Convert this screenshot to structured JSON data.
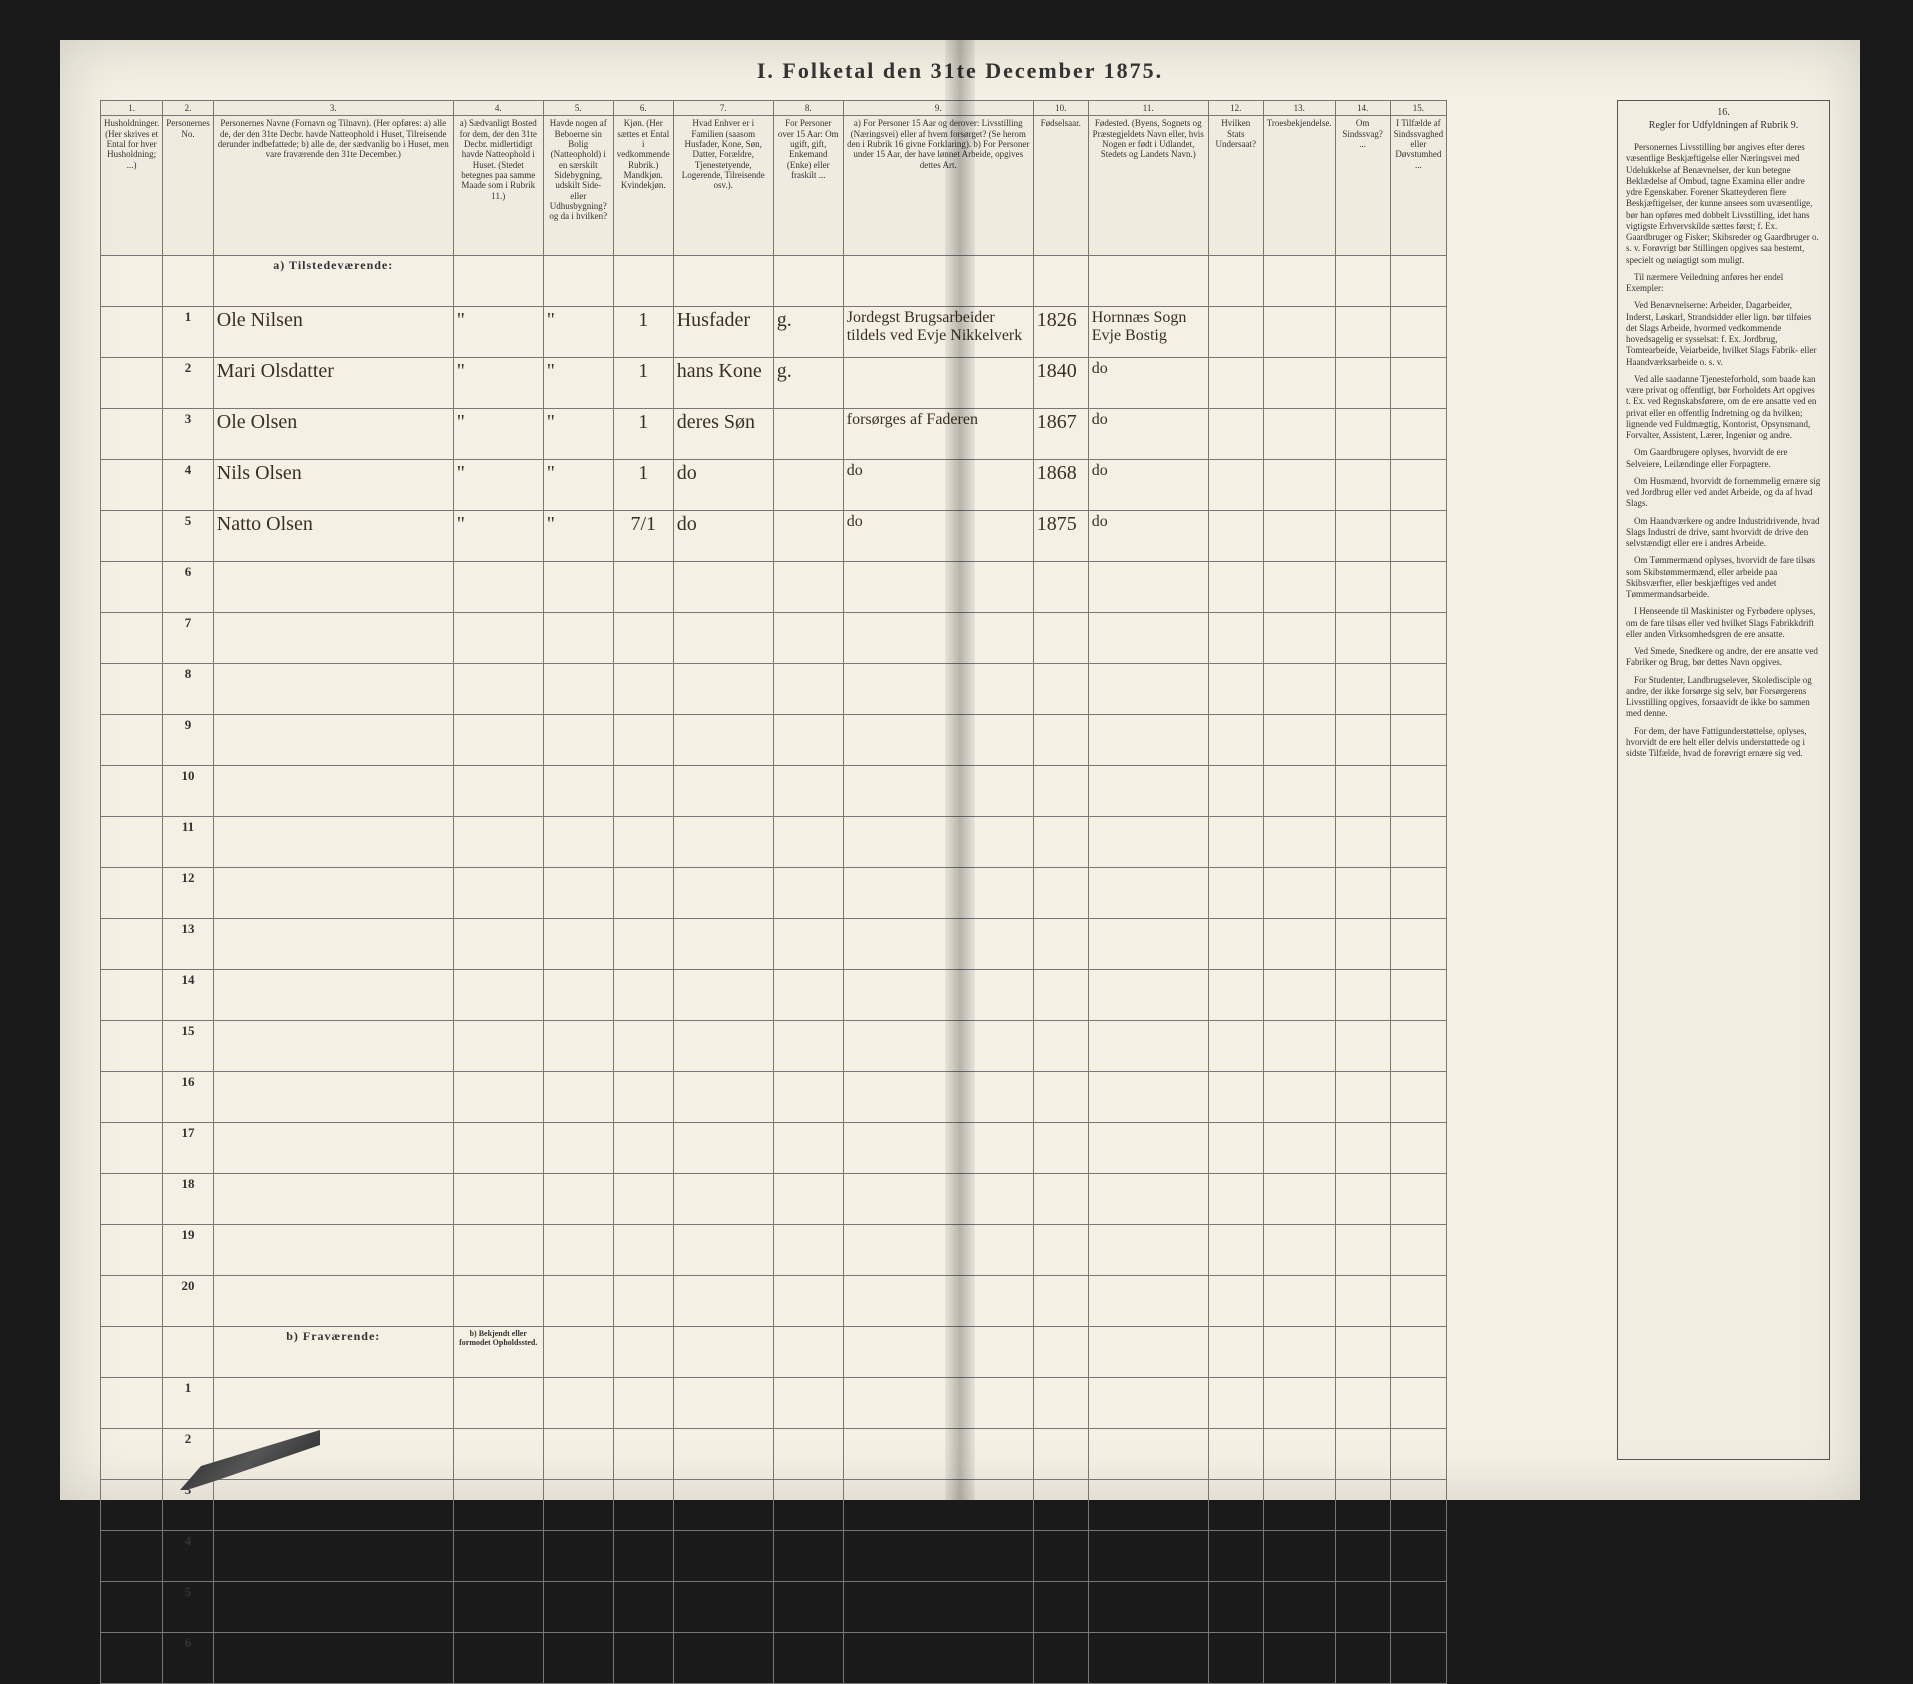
{
  "title": "I.  Folketal den 31te December 1875.",
  "columns": {
    "c1": {
      "num": "1.",
      "head": "Husholdninger. (Her skrives et Ental for hver Husholdning; ...)"
    },
    "c2": {
      "num": "2.",
      "head": "Personernes No."
    },
    "c3": {
      "num": "3.",
      "head": "Personernes Navne (Fornavn og Tilnavn). (Her opføres: a) alle de, der den 31te Decbr. havde Natteophold i Huset, Tilreisende derunder indbefattede; b) alle de, der sædvanlig bo i Huset, men vare fraværende den 31te December.)"
    },
    "c4": {
      "num": "4.",
      "head": "a) Sædvanligt Bosted for dem, der den 31te Decbr. midlertidigt havde Natteophold i Huset. (Stedet betegnes paa samme Maade som i Rubrik 11.)"
    },
    "c5": {
      "num": "5.",
      "head": "Havde nogen af Beboerne sin Bolig (Natteophold) i en særskilt Sidebygning, udskilt Side- eller Udhusbygning? og da i hvilken?"
    },
    "c6": {
      "num": "6.",
      "head": "Kjøn. (Her sættes et Ental i vedkommende Rubrik.) Mandkjøn. Kvindekjøn."
    },
    "c7": {
      "num": "7.",
      "head": "Hvad Enhver er i Familien (saasom Husfader, Kone, Søn, Datter, Forældre, Tjenestetyende, Logerende, Tilreisende osv.)."
    },
    "c8": {
      "num": "8.",
      "head": "For Personer over 15 Aar: Om ugift, gift, Enkemand (Enke) eller fraskilt ..."
    },
    "c9": {
      "num": "9.",
      "head": "a) For Personer 15 Aar og derover: Livsstilling (Næringsvei) eller af hvem forsørget? (Se herom den i Rubrik 16 givne Forklaring). b) For Personer under 15 Aar, der have lønnet Arbeide, opgives dettes Art."
    },
    "c10": {
      "num": "10.",
      "head": "Fødselsaar."
    },
    "c11": {
      "num": "11.",
      "head": "Fødested. (Byens, Sognets og Præstegjeldets Navn eller, hvis Nogen er født i Udlandet, Stedets og Landets Navn.)"
    },
    "c12": {
      "num": "12.",
      "head": "Hvilken Stats Undersaat?"
    },
    "c13": {
      "num": "13.",
      "head": "Troesbekjendelse."
    },
    "c14": {
      "num": "14.",
      "head": "Om Sindssvag? ..."
    },
    "c15": {
      "num": "15.",
      "head": "I Tilfælde af Sindssvaghed eller Døvstumhed ..."
    },
    "c16": {
      "num": "16.",
      "head": "Regler for Udfyldningen af Rubrik 9."
    }
  },
  "section_present": "a) Tilstedeværende:",
  "section_absent": "b) Fraværende:",
  "absent_col4_note": "b) Bekjendt eller formodet Opholdssted.",
  "rows_present": [
    {
      "n": "1",
      "name": "Ole Nilsen",
      "c4": "\"",
      "c5": "\"",
      "c6": "1",
      "c7": "Husfader",
      "c8": "g.",
      "c9": "Jordegst Brugsarbeider tildels ved Evje Nikkelverk",
      "c10": "1826",
      "c11": "Hornnæs Sogn Evje Bostig"
    },
    {
      "n": "2",
      "name": "Mari Olsdatter",
      "c4": "\"",
      "c5": "\"",
      "c6": "1",
      "c7": "hans Kone",
      "c8": "g.",
      "c9": "",
      "c10": "1840",
      "c11": "do"
    },
    {
      "n": "3",
      "name": "Ole Olsen",
      "c4": "\"",
      "c5": "\"",
      "c6": "1",
      "c7": "deres Søn",
      "c8": "",
      "c9": "forsørges af Faderen",
      "c10": "1867",
      "c11": "do"
    },
    {
      "n": "4",
      "name": "Nils Olsen",
      "c4": "\"",
      "c5": "\"",
      "c6": "1",
      "c7": "do",
      "c8": "",
      "c9": "do",
      "c10": "1868",
      "c11": "do"
    },
    {
      "n": "5",
      "name": "Natto Olsen",
      "c4": "\"",
      "c5": "\"",
      "c6": "7/1",
      "c7": "do",
      "c8": "",
      "c9": "do",
      "c10": "1875",
      "c11": "do"
    }
  ],
  "present_empty": [
    "6",
    "7",
    "8",
    "9",
    "10",
    "11",
    "12",
    "13",
    "14",
    "15",
    "16",
    "17",
    "18",
    "19",
    "20"
  ],
  "absent_empty": [
    "1",
    "2",
    "3",
    "4",
    "5",
    "6"
  ],
  "rules_text_head": "Regler for Udfyldningen af Rubrik 9.",
  "rules_paragraphs": [
    "Personernes Livsstilling bør angives efter deres væsentlige Beskjæftigelse eller Næringsvei med Udelukkelse af Benævnelser, der kun betegne Beklædelse af Ombud, tagne Examina eller andre ydre Egenskaber. Forener Skatteyderen flere Beskjæftigelser, der kunne ansees som uvæsentlige, bør han opføres med dobbelt Livsstilling, idet hans vigtigste Erhvervskilde sættes først; f. Ex. Gaardbruger og Fisker; Skibsreder og Gaardbruger o. s. v. Forøvrigt bør Stillingen opgives saa bestemt, specielt og nøiagtigt som muligt.",
    "Til nærmere Veiledning anføres her endel Exempler:",
    "Ved Benævnelserne: Arbeider, Dagarbeider, Inderst, Løskarl, Strandsidder eller lign. bør tilføies det Slags Arbeide, hvormed vedkommende hovedsagelig er sysselsat: f. Ex. Jordbrug, Tomtearbeide, Veiarbeide, hvilket Slags Fabrik- eller Haandværksarbeide o. s. v.",
    "Ved alle saadanne Tjenesteforhold, som baade kan være privat og offentligt, bør Forholdets Art opgives t. Ex. ved Regnskabsførere, om de ere ansatte ved en privat eller en offentlig Indretning og da hvilken; lignende ved Fuldmægtig, Kontorist, Opsynsmand, Forvalter, Assistent, Lærer, Ingeniør og andre.",
    "Om Gaardbrugere oplyses, hvorvidt de ere Selveiere, Leilændinge eller Forpagtere.",
    "Om Husmænd, hvorvidt de fornemmelig ernære sig ved Jordbrug eller ved andet Arbeide, og da af hvad Slags.",
    "Om Haandværkere og andre Industridrivende, hvad Slags Industri de drive, samt hvorvidt de drive den selvstændigt eller ere i andres Arbeide.",
    "Om Tømmermænd oplyses, hvorvidt de fare tilsøs som Skibstømmermænd, eller arbeide paa Skibsværfter, eller beskjæftiges ved andet Tømmermandsarbeide.",
    "I Henseende til Maskinister og Fyrbødere oplyses, om de fare tilsøs eller ved hvilket Slags Fabrikkdrift eller anden Virksomhedsgren de ere ansatte.",
    "Ved Smede, Snedkere og andre, der ere ansatte ved Fabriker og Brug, bør dettes Navn opgives.",
    "For Studenter, Landbrugselever, Skoledisciple og andre, der ikke forsørge sig selv, bør Forsørgerens Livsstilling opgives, forsaavidt de ikke bo sammen med denne.",
    "For dem, der have Fattigunderstøttelse, oplyses, hvorvidt de ere helt eller delvis understøttede og i sidste Tilfælde, hvad de forøvrigt ernære sig ved."
  ],
  "styling": {
    "page_bg": "#f4f0e4",
    "ink": "#3a3020",
    "rule_color": "#777",
    "title_fontsize": 22,
    "header_fontsize": 9,
    "script_fontsize": 20
  }
}
